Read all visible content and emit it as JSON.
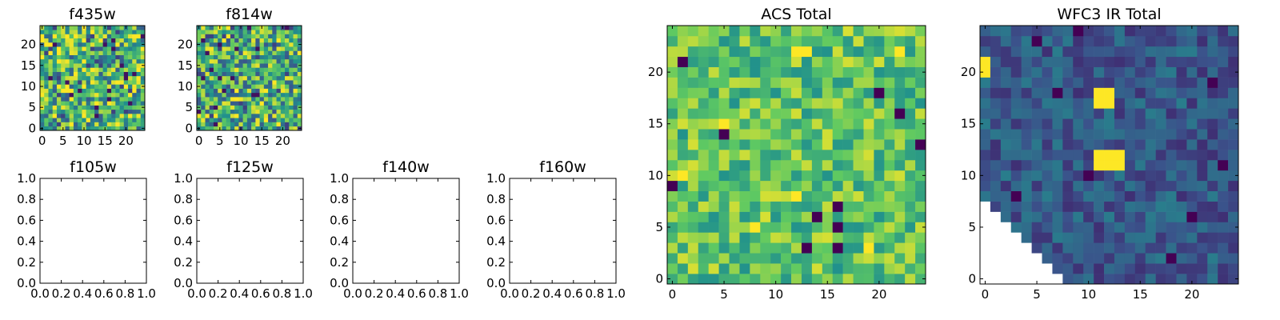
{
  "figure": {
    "colors": {
      "viridis": [
        "#440154",
        "#3b528b",
        "#21918c",
        "#5ec962",
        "#fde725"
      ]
    }
  },
  "chart_data": [
    {
      "id": "f435w",
      "type": "heatmap",
      "title": "f435w",
      "grid_size": 25,
      "xlim": [
        -0.5,
        24.5
      ],
      "ylim": [
        -0.5,
        24.5
      ],
      "xticks": [
        0,
        5,
        10,
        15,
        20
      ],
      "yticks": [
        0,
        5,
        10,
        15,
        20
      ],
      "tick_labels_x": [
        "0",
        "5",
        "10",
        "15",
        "20"
      ],
      "tick_labels_y": [
        "0",
        "5",
        "10",
        "15",
        "20"
      ],
      "pattern": "noise",
      "value_range": [
        0.05,
        1.0
      ],
      "mean_level": 0.66,
      "seed": 11
    },
    {
      "id": "f814w",
      "type": "heatmap",
      "title": "f814w",
      "grid_size": 25,
      "xlim": [
        -0.5,
        24.5
      ],
      "ylim": [
        -0.5,
        24.5
      ],
      "xticks": [
        0,
        5,
        10,
        15,
        20
      ],
      "yticks": [
        0,
        5,
        10,
        15,
        20
      ],
      "tick_labels_x": [
        "0",
        "5",
        "10",
        "15",
        "20"
      ],
      "tick_labels_y": [
        "0",
        "5",
        "10",
        "15",
        "20"
      ],
      "pattern": "noise",
      "value_range": [
        0.05,
        1.0
      ],
      "mean_level": 0.64,
      "seed": 23
    },
    {
      "id": "f105w",
      "type": "scatter",
      "title": "f105w",
      "empty": true,
      "xlim": [
        0,
        1
      ],
      "ylim": [
        0,
        1
      ],
      "tick_labels_x": [
        "0.0",
        "0.2",
        "0.4",
        "0.6",
        "0.8",
        "1.0"
      ],
      "tick_labels_y": [
        "0.0",
        "0.2",
        "0.4",
        "0.6",
        "0.8",
        "1.0"
      ]
    },
    {
      "id": "f125w",
      "type": "scatter",
      "title": "f125w",
      "empty": true,
      "xlim": [
        0,
        1
      ],
      "ylim": [
        0,
        1
      ],
      "tick_labels_x": [
        "0.0",
        "0.2",
        "0.4",
        "0.6",
        "0.8",
        "1.0"
      ],
      "tick_labels_y": [
        "0.0",
        "0.2",
        "0.4",
        "0.6",
        "0.8",
        "1.0"
      ]
    },
    {
      "id": "f140w",
      "type": "scatter",
      "title": "f140w",
      "empty": true,
      "xlim": [
        0,
        1
      ],
      "ylim": [
        0,
        1
      ],
      "tick_labels_x": [
        "0.0",
        "0.2",
        "0.4",
        "0.6",
        "0.8",
        "1.0"
      ],
      "tick_labels_y": [
        "0.0",
        "0.2",
        "0.4",
        "0.6",
        "0.8",
        "1.0"
      ]
    },
    {
      "id": "f160w",
      "type": "scatter",
      "title": "f160w",
      "empty": true,
      "xlim": [
        0,
        1
      ],
      "ylim": [
        0,
        1
      ],
      "tick_labels_x": [
        "0.0",
        "0.2",
        "0.4",
        "0.6",
        "0.8",
        "1.0"
      ],
      "tick_labels_y": [
        "0.0",
        "0.2",
        "0.4",
        "0.6",
        "0.8",
        "1.0"
      ]
    },
    {
      "id": "acs-total",
      "type": "heatmap",
      "title": "ACS Total",
      "grid_size": 25,
      "xlim": [
        -0.5,
        24.5
      ],
      "ylim": [
        -0.5,
        24.5
      ],
      "xticks": [
        0,
        5,
        10,
        15,
        20
      ],
      "yticks": [
        0,
        5,
        10,
        15,
        20
      ],
      "tick_labels_x": [
        "0",
        "5",
        "10",
        "15",
        "20"
      ],
      "tick_labels_y": [
        "0",
        "5",
        "10",
        "15",
        "20"
      ],
      "pattern": "noise",
      "value_range": [
        0.45,
        1.0
      ],
      "mean_level": 0.72,
      "seed": 37,
      "dark_cells": [
        [
          1,
          21
        ],
        [
          5,
          14
        ],
        [
          16,
          3
        ],
        [
          16,
          5
        ],
        [
          14,
          6
        ],
        [
          13,
          3
        ],
        [
          16,
          7
        ],
        [
          22,
          16
        ],
        [
          24,
          13
        ],
        [
          20,
          18
        ],
        [
          0,
          9
        ]
      ],
      "bright_cells": [
        [
          12,
          22
        ],
        [
          13,
          22
        ],
        [
          22,
          22
        ],
        [
          5,
          15
        ],
        [
          8,
          5
        ],
        [
          12,
          8
        ],
        [
          19,
          3
        ],
        [
          1,
          10
        ]
      ]
    },
    {
      "id": "wfc3-ir-total",
      "type": "heatmap",
      "title": "WFC3 IR Total",
      "grid_size": 25,
      "xlim": [
        -0.5,
        24.5
      ],
      "ylim": [
        -0.5,
        24.5
      ],
      "xticks": [
        0,
        5,
        10,
        15,
        20
      ],
      "yticks": [
        0,
        5,
        10,
        15,
        20
      ],
      "tick_labels_x": [
        "0",
        "5",
        "10",
        "15",
        "20"
      ],
      "tick_labels_y": [
        "0",
        "5",
        "10",
        "15",
        "20"
      ],
      "pattern": "noise",
      "value_range": [
        0.1,
        0.45
      ],
      "mean_level": 0.28,
      "seed": 53,
      "bright_cells": [
        [
          0,
          20
        ],
        [
          0,
          21
        ],
        [
          11,
          18
        ],
        [
          12,
          18
        ],
        [
          11,
          17
        ],
        [
          12,
          17
        ],
        [
          11,
          11
        ],
        [
          12,
          11
        ],
        [
          11,
          12
        ],
        [
          12,
          12
        ],
        [
          13,
          11
        ],
        [
          13,
          12
        ]
      ],
      "dark_cells": [
        [
          9,
          24
        ],
        [
          5,
          23
        ],
        [
          10,
          10
        ],
        [
          3,
          8
        ],
        [
          22,
          19
        ],
        [
          23,
          11
        ],
        [
          7,
          18
        ],
        [
          20,
          6
        ],
        [
          18,
          2
        ]
      ],
      "blank_region": "lower-left triangle"
    }
  ]
}
